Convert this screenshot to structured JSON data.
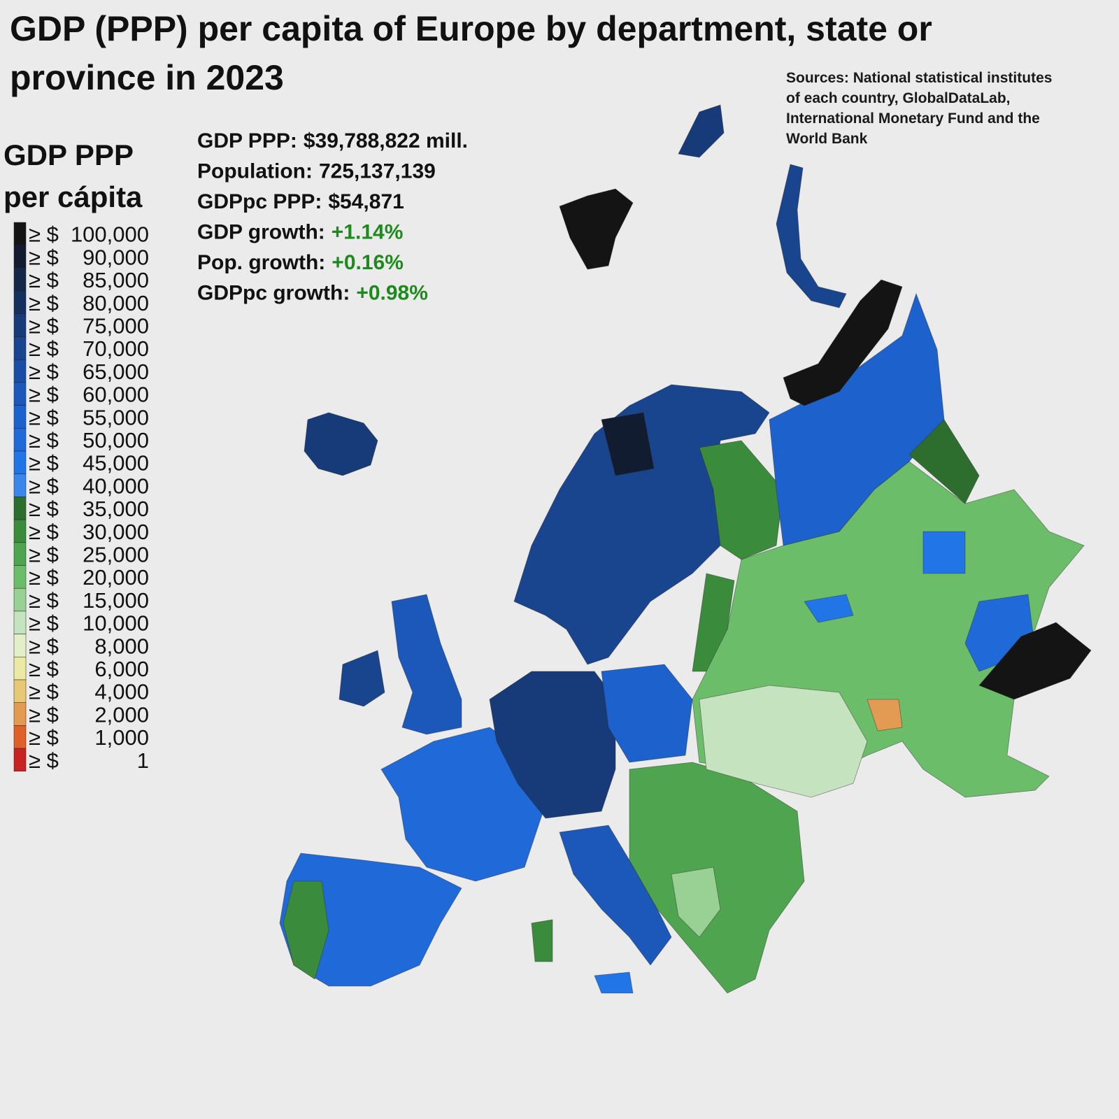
{
  "header": {
    "title_lines": [
      "GDP (PPP) per capita of Europe by department, state or",
      "province in 2023"
    ],
    "sources_lines": [
      "Sources: National statistical institutes",
      "of each country, GlobalDataLab,",
      "International Monetary Fund and the",
      "World Bank"
    ]
  },
  "legend": {
    "title_lines": [
      "GDP PPP",
      "per cápita"
    ],
    "entries": [
      {
        "prefix": "≥ $",
        "amount": "100,000",
        "color": "#141414"
      },
      {
        "prefix": "≥ $",
        "amount": "90,000",
        "color": "#121c30"
      },
      {
        "prefix": "≥ $",
        "amount": "85,000",
        "color": "#142748"
      },
      {
        "prefix": "≥ $",
        "amount": "80,000",
        "color": "#15305e"
      },
      {
        "prefix": "≥ $",
        "amount": "75,000",
        "color": "#173a78"
      },
      {
        "prefix": "≥ $",
        "amount": "70,000",
        "color": "#19448e"
      },
      {
        "prefix": "≥ $",
        "amount": "65,000",
        "color": "#1a4ea6"
      },
      {
        "prefix": "≥ $",
        "amount": "60,000",
        "color": "#1b58ba"
      },
      {
        "prefix": "≥ $",
        "amount": "55,000",
        "color": "#1d62cc"
      },
      {
        "prefix": "≥ $",
        "amount": "50,000",
        "color": "#1f6ad8"
      },
      {
        "prefix": "≥ $",
        "amount": "45,000",
        "color": "#2275e6"
      },
      {
        "prefix": "≥ $",
        "amount": "40,000",
        "color": "#3a86ea"
      },
      {
        "prefix": "≥ $",
        "amount": "35,000",
        "color": "#2d6e2f"
      },
      {
        "prefix": "≥ $",
        "amount": "30,000",
        "color": "#3b8b3d"
      },
      {
        "prefix": "≥ $",
        "amount": "25,000",
        "color": "#4fa54f"
      },
      {
        "prefix": "≥ $",
        "amount": "20,000",
        "color": "#6cbd6a"
      },
      {
        "prefix": "≥ $",
        "amount": "15,000",
        "color": "#98d193"
      },
      {
        "prefix": "≥ $",
        "amount": "10,000",
        "color": "#c6e3bf"
      },
      {
        "prefix": "≥ $",
        "amount": "8,000",
        "color": "#e3efc9"
      },
      {
        "prefix": "≥ $",
        "amount": "6,000",
        "color": "#ece9a4"
      },
      {
        "prefix": "≥ $",
        "amount": "4,000",
        "color": "#e6c877"
      },
      {
        "prefix": "≥ $",
        "amount": "2,000",
        "color": "#e39a52"
      },
      {
        "prefix": "≥ $",
        "amount": "1,000",
        "color": "#e0602a"
      },
      {
        "prefix": "≥ $",
        "amount": "1",
        "color": "#c82323"
      }
    ]
  },
  "stats": [
    {
      "label": "GDP PPP:",
      "value": "$39,788,822 mill."
    },
    {
      "label": "Population:",
      "value": "725,137,139"
    },
    {
      "label": "GDPpc PPP:",
      "value": "$54,871"
    },
    {
      "label": "GDP growth:",
      "value": "+1.14%",
      "value_color": "#1e8a1e"
    },
    {
      "label": "Pop. growth:",
      "value": "+0.16%",
      "value_color": "#1e8a1e"
    },
    {
      "label": "GDPpc growth:",
      "value": "+0.98%",
      "value_color": "#1e8a1e"
    }
  ]
}
